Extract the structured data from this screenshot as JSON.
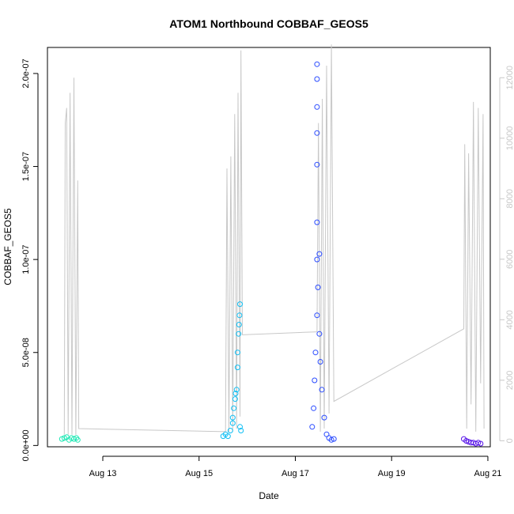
{
  "chart_data": {
    "type": "scatter",
    "title": "ATOM1 Northbound COBBAF_GEOS5",
    "xlabel": "Date",
    "ylabel": "COBBAF_GEOS5",
    "x_ticks": [
      "Aug 13",
      "Aug 15",
      "Aug 17",
      "Aug 19",
      "Aug 21"
    ],
    "x_tick_days": [
      13,
      15,
      17,
      19,
      21
    ],
    "xlim_days": [
      11.85,
      21.05
    ],
    "y_left": {
      "ticks": [
        "0.0e+00",
        "5.0e-08",
        "1.0e-07",
        "1.5e-07",
        "2.0e-07"
      ],
      "tick_values": [
        0,
        5e-08,
        1e-07,
        1.5e-07,
        2e-07
      ],
      "lim": [
        -7e-10,
        2.14e-07
      ]
    },
    "y_right": {
      "ticks": [
        "0",
        "2000",
        "4000",
        "6000",
        "8000",
        "10000",
        "12000"
      ],
      "tick_values": [
        0,
        2000,
        4000,
        6000,
        8000,
        10000,
        12000
      ],
      "lim": [
        -200,
        13000
      ],
      "color": "#c8c8c8"
    },
    "grid": false,
    "series": [
      {
        "color": "#1ee8b4",
        "points": [
          [
            12.15,
            3.5e-09
          ],
          [
            12.2,
            4e-09
          ],
          [
            12.25,
            4.5e-09
          ],
          [
            12.3,
            3e-09
          ],
          [
            12.35,
            4e-09
          ],
          [
            12.4,
            3.5e-09
          ],
          [
            12.45,
            4e-09
          ],
          [
            12.48,
            3e-09
          ]
        ]
      },
      {
        "color": "#10bff4",
        "points": [
          [
            15.5,
            5e-09
          ],
          [
            15.55,
            6e-09
          ],
          [
            15.6,
            5e-09
          ],
          [
            15.65,
            8e-09
          ],
          [
            15.7,
            1.2e-08
          ],
          [
            15.72,
            2e-08
          ],
          [
            15.75,
            2.5e-08
          ],
          [
            15.78,
            3e-08
          ],
          [
            15.8,
            5e-08
          ],
          [
            15.82,
            6e-08
          ],
          [
            15.84,
            7e-08
          ],
          [
            15.85,
            7.6e-08
          ],
          [
            15.83,
            6.5e-08
          ],
          [
            15.8,
            4.2e-08
          ],
          [
            15.76,
            2.8e-08
          ],
          [
            15.7,
            1.5e-08
          ],
          [
            15.85,
            1e-08
          ],
          [
            15.87,
            8e-09
          ]
        ]
      },
      {
        "color": "#2a4bff",
        "points": [
          [
            17.35,
            1e-08
          ],
          [
            17.38,
            2e-08
          ],
          [
            17.4,
            3.5e-08
          ],
          [
            17.42,
            5e-08
          ],
          [
            17.45,
            7e-08
          ],
          [
            17.45,
            1e-07
          ],
          [
            17.45,
            1.2e-07
          ],
          [
            17.45,
            1.51e-07
          ],
          [
            17.45,
            1.68e-07
          ],
          [
            17.45,
            1.82e-07
          ],
          [
            17.45,
            1.97e-07
          ],
          [
            17.45,
            2.05e-07
          ],
          [
            17.47,
            8.5e-08
          ],
          [
            17.5,
            1.03e-07
          ],
          [
            17.5,
            6e-08
          ],
          [
            17.52,
            4.5e-08
          ],
          [
            17.55,
            3e-08
          ],
          [
            17.6,
            1.5e-08
          ],
          [
            17.65,
            6e-09
          ],
          [
            17.7,
            4e-09
          ],
          [
            17.75,
            3e-09
          ],
          [
            17.8,
            3.5e-09
          ]
        ]
      },
      {
        "color": "#5511e8",
        "points": [
          [
            20.5,
            3.5e-09
          ],
          [
            20.55,
            2.5e-09
          ],
          [
            20.6,
            2e-09
          ],
          [
            20.65,
            1.5e-09
          ],
          [
            20.7,
            1.5e-09
          ],
          [
            20.75,
            1e-09
          ],
          [
            20.8,
            1.5e-09
          ],
          [
            20.85,
            1e-09
          ]
        ]
      }
    ],
    "right_axis_line": {
      "color": "#c8c8c8",
      "points": [
        [
          12.2,
          200
        ],
        [
          12.22,
          10500
        ],
        [
          12.25,
          11000
        ],
        [
          12.28,
          200
        ],
        [
          12.32,
          11500
        ],
        [
          12.36,
          200
        ],
        [
          12.4,
          12000
        ],
        [
          12.44,
          200
        ],
        [
          12.48,
          8600
        ],
        [
          12.5,
          400
        ],
        [
          15.55,
          300
        ],
        [
          15.58,
          9000
        ],
        [
          15.62,
          300
        ],
        [
          15.66,
          9400
        ],
        [
          15.7,
          300
        ],
        [
          15.74,
          10800
        ],
        [
          15.78,
          400
        ],
        [
          15.81,
          11500
        ],
        [
          15.85,
          800
        ],
        [
          15.87,
          12900
        ],
        [
          15.9,
          3500
        ],
        [
          17.45,
          3600
        ],
        [
          17.48,
          10500
        ],
        [
          17.52,
          300
        ],
        [
          17.56,
          11300
        ],
        [
          17.6,
          400
        ],
        [
          17.65,
          12400
        ],
        [
          17.7,
          900
        ],
        [
          17.75,
          13100
        ],
        [
          17.8,
          1300
        ],
        [
          20.5,
          3700
        ],
        [
          20.52,
          9800
        ],
        [
          20.56,
          400
        ],
        [
          20.6,
          9500
        ],
        [
          20.65,
          1200
        ],
        [
          20.7,
          11200
        ],
        [
          20.75,
          300
        ],
        [
          20.8,
          11000
        ],
        [
          20.85,
          1900
        ],
        [
          20.9,
          10800
        ],
        [
          20.92,
          400
        ]
      ]
    }
  }
}
